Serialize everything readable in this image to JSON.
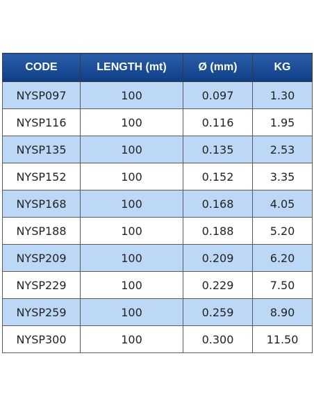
{
  "table": {
    "header": [
      "CODE",
      "LENGTH (mt)",
      "Ø (mm)",
      "KG"
    ],
    "rows": [
      [
        "NYSP097",
        "100",
        "0.097",
        "1.30"
      ],
      [
        "NYSP116",
        "100",
        "0.116",
        "1.95"
      ],
      [
        "NYSP135",
        "100",
        "0.135",
        "2.53"
      ],
      [
        "NYSP152",
        "100",
        "0.152",
        "3.35"
      ],
      [
        "NYSP168",
        "100",
        "0.168",
        "4.05"
      ],
      [
        "NYSP188",
        "100",
        "0.188",
        "5.20"
      ],
      [
        "NYSP209",
        "100",
        "0.209",
        "6.20"
      ],
      [
        "NYSP229",
        "100",
        "0.229",
        "7.50"
      ],
      [
        "NYSP259",
        "100",
        "0.259",
        "8.90"
      ],
      [
        "NYSP300",
        "100",
        "0.300",
        "11.50"
      ]
    ]
  }
}
